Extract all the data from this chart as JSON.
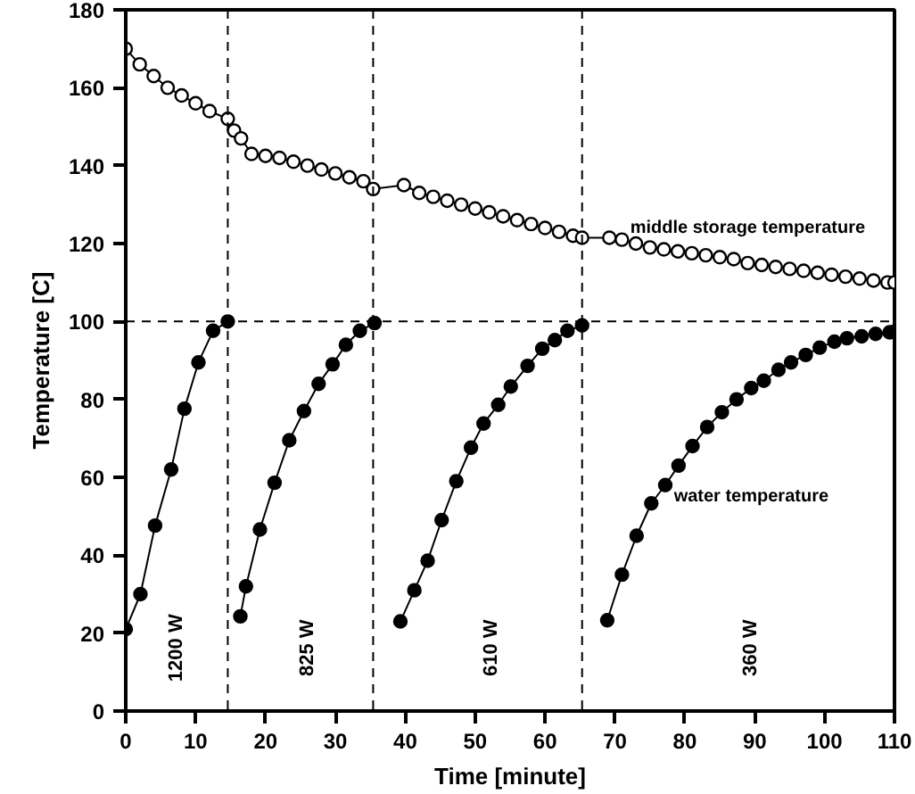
{
  "chart_data": {
    "type": "line",
    "xlabel": "Time [minute]",
    "ylabel": "Temperature [C]",
    "xlim": [
      0,
      110
    ],
    "ylim": [
      0,
      180
    ],
    "xticks": [
      0,
      10,
      20,
      30,
      40,
      50,
      60,
      70,
      80,
      90,
      100,
      110
    ],
    "yticks": [
      0,
      20,
      40,
      60,
      80,
      100,
      120,
      140,
      160,
      180
    ],
    "grid": false,
    "marker": "circle",
    "series": [
      {
        "name": "middle storage temperature",
        "color": "#000000",
        "x": [
          0,
          2,
          4,
          6,
          8,
          10,
          12,
          14.6,
          15.5,
          16.5,
          18,
          20,
          22,
          24,
          26,
          28,
          30,
          32,
          34,
          35.4,
          39.8,
          42,
          44,
          46,
          48,
          50,
          52,
          54,
          56,
          58,
          60,
          62,
          64,
          65.3,
          69.2,
          71,
          73,
          75,
          77,
          79,
          81,
          83,
          85,
          87,
          89,
          91,
          93,
          95,
          97,
          99,
          101,
          103,
          105,
          107,
          109,
          110
        ],
        "values": [
          170,
          166,
          163,
          160,
          158,
          156,
          154,
          152,
          149,
          147,
          143,
          142.5,
          142,
          141,
          140,
          139,
          138,
          137,
          136,
          134,
          135,
          133,
          132,
          131,
          130,
          129,
          128,
          127,
          126,
          125,
          124,
          123,
          122,
          121.5,
          121.5,
          121,
          120,
          119,
          118.5,
          118,
          117.5,
          117,
          116.5,
          116,
          115,
          114.5,
          114,
          113.5,
          113,
          112.5,
          112,
          111.5,
          111,
          110.5,
          110,
          110
        ]
      },
      {
        "name": "water temperature",
        "color": "#000000",
        "x": [
          0,
          2.1,
          4.2,
          6.5,
          8.4,
          10.4,
          12.5,
          14.6,
          15.5,
          16.4,
          17.2,
          19.2,
          21.3,
          23.4,
          25.5,
          27.6,
          29.6,
          31.5,
          33.5,
          35.6,
          37.5,
          39.3,
          41.3,
          43.2,
          45.2,
          47.3,
          49.4,
          51.2,
          53.3,
          55.1,
          57.5,
          59.6,
          61.4,
          63.2,
          65.3,
          67,
          68.9,
          71,
          73.1,
          75.2,
          77.2,
          79.1,
          81.1,
          83.2,
          85.3,
          87.4,
          89.5,
          91.3,
          93.4,
          95.2,
          97.3,
          99.3,
          101.4,
          103.2,
          105.3,
          107.3,
          109.3,
          110
        ],
        "values": [
          21,
          30,
          47.6,
          62,
          77.6,
          89.5,
          97.6,
          100,
          null,
          24.3,
          32,
          46.6,
          58.6,
          69.5,
          77,
          84,
          89,
          94,
          97.6,
          99.6,
          null,
          23,
          31,
          38.6,
          49,
          59,
          67.6,
          73.8,
          78.6,
          83.3,
          88.6,
          93,
          95.2,
          97.6,
          99,
          null,
          23.3,
          35,
          45,
          53.3,
          58,
          63,
          68,
          72.9,
          76.7,
          80,
          82.9,
          84.8,
          87.6,
          89.5,
          91.4,
          93.3,
          94.8,
          95.7,
          96.2,
          96.8,
          97.2,
          97.4
        ]
      }
    ],
    "ref_lines": [
      {
        "axis": "x",
        "value": 14.6,
        "line_style": "dashed"
      },
      {
        "axis": "x",
        "value": 35.4,
        "line_style": "dashed"
      },
      {
        "axis": "x",
        "value": 65.3,
        "line_style": "dashed"
      },
      {
        "axis": "y",
        "value": 100,
        "line_style": "dashed"
      }
    ],
    "annotations": [
      "1200 W",
      "825 W",
      "610 W",
      "360 W"
    ]
  }
}
